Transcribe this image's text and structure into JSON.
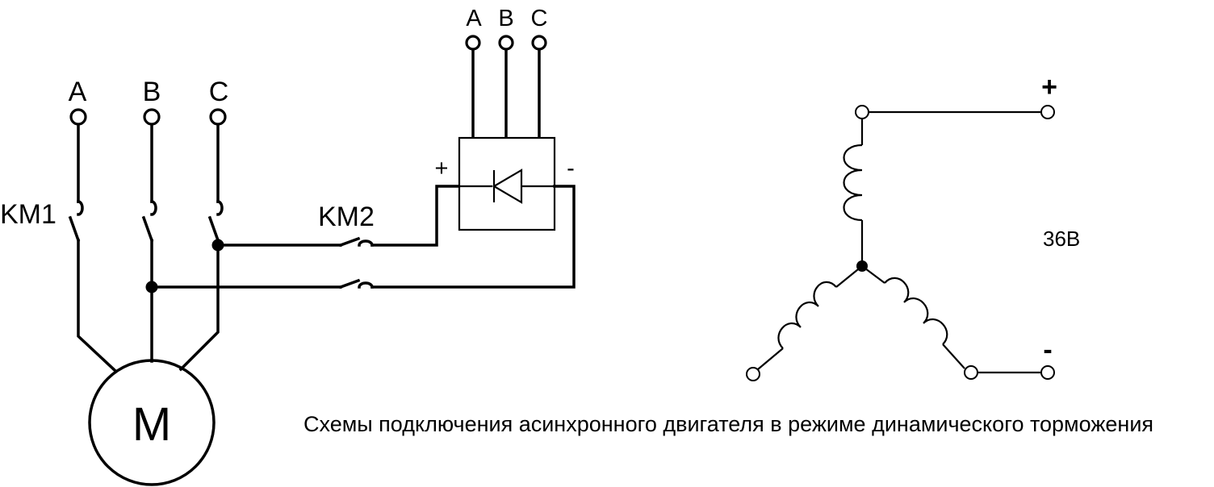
{
  "motor_circuit": {
    "phase_labels": [
      "A",
      "B",
      "C"
    ],
    "switch_km1": "KM1",
    "switch_km2": "KM2",
    "motor_label": "M"
  },
  "rectifier": {
    "phase_labels": [
      "A",
      "B",
      "C"
    ],
    "plus": "+",
    "minus": "-"
  },
  "star_winding": {
    "plus": "+",
    "minus": "-",
    "voltage": "36В"
  },
  "caption": "Схемы подключения асинхронного двигателя в режиме динамического торможения"
}
